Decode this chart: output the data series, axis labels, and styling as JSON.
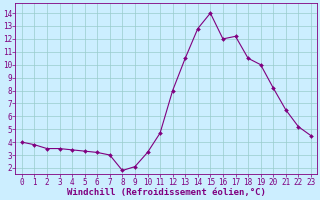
{
  "x": [
    0,
    1,
    2,
    3,
    4,
    5,
    6,
    7,
    8,
    9,
    10,
    11,
    12,
    13,
    14,
    15,
    16,
    17,
    18,
    19,
    20,
    21,
    22,
    23
  ],
  "y": [
    4.0,
    3.8,
    3.5,
    3.5,
    3.4,
    3.3,
    3.2,
    3.0,
    1.8,
    2.1,
    3.2,
    4.7,
    8.0,
    10.5,
    12.8,
    14.0,
    12.0,
    12.2,
    10.5,
    10.0,
    8.2,
    6.5,
    5.2,
    4.5
  ],
  "line_color": "#800080",
  "marker_color": "#800080",
  "bg_color": "#cceeff",
  "grid_color": "#99cccc",
  "xlabel": "Windchill (Refroidissement éolien,°C)",
  "xlabel_color": "#800080",
  "tick_color": "#800080",
  "ylim": [
    1.5,
    14.8
  ],
  "xlim": [
    -0.5,
    23.5
  ],
  "yticks": [
    2,
    3,
    4,
    5,
    6,
    7,
    8,
    9,
    10,
    11,
    12,
    13,
    14
  ],
  "xticks": [
    0,
    1,
    2,
    3,
    4,
    5,
    6,
    7,
    8,
    9,
    10,
    11,
    12,
    13,
    14,
    15,
    16,
    17,
    18,
    19,
    20,
    21,
    22,
    23
  ],
  "spine_color": "#800080",
  "tick_fontsize": 5.5,
  "xlabel_fontsize": 6.5
}
